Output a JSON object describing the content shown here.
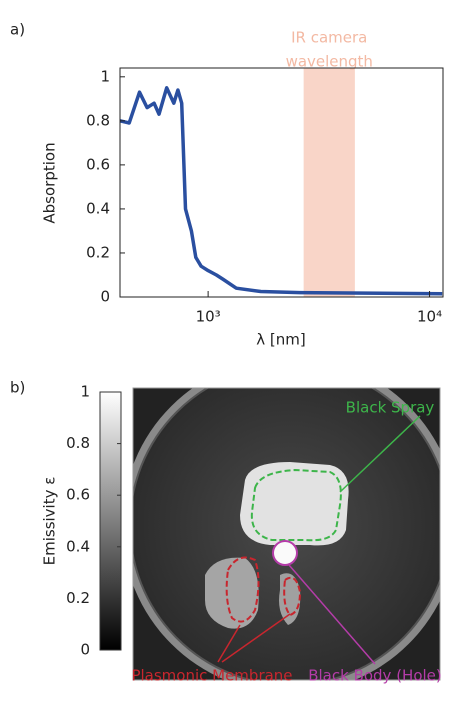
{
  "chart_data": [
    {
      "type": "line",
      "label": "a)",
      "xlabel": "λ [nm]",
      "ylabel": "Absorption",
      "xscale": "log",
      "xlim": [
        400,
        11500
      ],
      "ylim": [
        0,
        1.04
      ],
      "xticks": [
        {
          "value": 1000,
          "label": "10³"
        },
        {
          "value": 10000,
          "label": "10⁴"
        }
      ],
      "yticks": [
        0,
        0.2,
        0.4,
        0.6,
        0.8,
        1
      ],
      "color": "#2a4fa0",
      "x": [
        400,
        440,
        490,
        530,
        570,
        600,
        650,
        700,
        730,
        760,
        790,
        840,
        880,
        930,
        1000,
        1090,
        1170,
        1340,
        1730,
        2600,
        11400
      ],
      "values": [
        0.8,
        0.79,
        0.93,
        0.86,
        0.88,
        0.83,
        0.95,
        0.88,
        0.94,
        0.88,
        0.4,
        0.3,
        0.18,
        0.14,
        0.12,
        0.1,
        0.08,
        0.04,
        0.025,
        0.02,
        0.015
      ],
      "band": {
        "text": [
          "IR camera",
          "wavelength"
        ],
        "range": [
          2700,
          4600
        ],
        "color": "#f9d5c8",
        "text_color": "#f3b9a3"
      }
    },
    {
      "type": "image",
      "label": "b)",
      "colorbar_label": "Emissivity ε",
      "clim": [
        0,
        1
      ],
      "cticks": [
        0,
        0.2,
        0.4,
        0.6,
        0.8,
        1
      ],
      "annotations": [
        {
          "text": "Black Spray",
          "color": "#3db54a"
        },
        {
          "text": "Plasmonic Membrane",
          "color": "#c8262e"
        },
        {
          "text": "Black Body (Hole)",
          "color": "#b43ca8"
        }
      ]
    }
  ]
}
